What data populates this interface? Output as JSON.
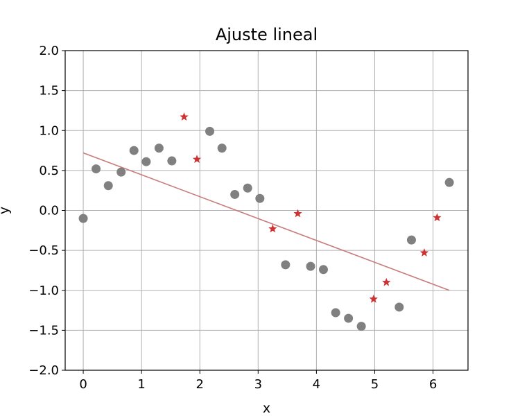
{
  "chart_data": {
    "type": "scatter",
    "title": "Ajuste lineal",
    "xlabel": "x",
    "ylabel": "y",
    "xlim": [
      -0.31,
      6.6
    ],
    "ylim": [
      -2.0,
      2.0
    ],
    "xticks": [
      0,
      1,
      2,
      3,
      4,
      5,
      6
    ],
    "xtick_labels": [
      "0",
      "1",
      "2",
      "3",
      "4",
      "5",
      "6"
    ],
    "yticks": [
      -2.0,
      -1.5,
      -1.0,
      -0.5,
      0.0,
      0.5,
      1.0,
      1.5,
      2.0
    ],
    "ytick_labels": [
      "−2.0",
      "−1.5",
      "−1.0",
      "−0.5",
      "0.0",
      "0.5",
      "1.0",
      "1.5",
      "2.0"
    ],
    "grid": true,
    "series": [
      {
        "marker": "circle",
        "color": "#808080",
        "points": [
          [
            0.0,
            -0.1
          ],
          [
            0.22,
            0.52
          ],
          [
            0.43,
            0.31
          ],
          [
            0.65,
            0.48
          ],
          [
            0.87,
            0.75
          ],
          [
            1.08,
            0.61
          ],
          [
            1.3,
            0.78
          ],
          [
            1.52,
            0.62
          ],
          [
            2.17,
            0.99
          ],
          [
            2.38,
            0.78
          ],
          [
            2.6,
            0.2
          ],
          [
            2.82,
            0.28
          ],
          [
            3.03,
            0.15
          ],
          [
            3.47,
            -0.68
          ],
          [
            3.9,
            -0.7
          ],
          [
            4.12,
            -0.74
          ],
          [
            4.33,
            -1.28
          ],
          [
            4.55,
            -1.35
          ],
          [
            4.77,
            -1.45
          ],
          [
            5.42,
            -1.21
          ],
          [
            5.63,
            -0.37
          ],
          [
            6.28,
            0.35
          ]
        ]
      },
      {
        "marker": "star",
        "color": "#cc3333",
        "points": [
          [
            1.73,
            1.17
          ],
          [
            1.95,
            0.64
          ],
          [
            3.25,
            -0.23
          ],
          [
            3.68,
            -0.04
          ],
          [
            4.98,
            -1.11
          ],
          [
            5.2,
            -0.9
          ],
          [
            5.85,
            -0.53
          ],
          [
            6.07,
            -0.09
          ]
        ]
      }
    ],
    "fit_line": {
      "color": "#c97b7b",
      "points": [
        [
          0.0,
          0.72
        ],
        [
          6.28,
          -1.0
        ]
      ]
    }
  }
}
